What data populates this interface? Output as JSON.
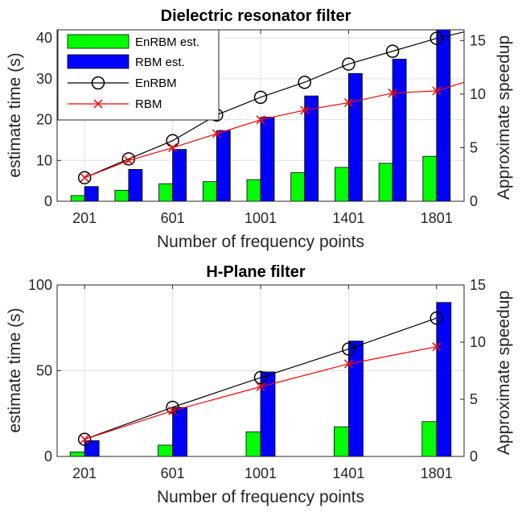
{
  "chart_data": [
    {
      "type": "bar",
      "title": "Dielectric resonator filter",
      "xlabel": "Number of frequency points",
      "ylabel": "estimate time (s)",
      "y2label": "Approximate speedup",
      "x": [
        201,
        401,
        601,
        801,
        1001,
        1201,
        1401,
        1601,
        1801
      ],
      "xticks": [
        "201",
        "601",
        "1001",
        "1401",
        "1801"
      ],
      "xtick_values": [
        201,
        601,
        1001,
        1401,
        1801
      ],
      "yticks": [
        "0",
        "10",
        "20",
        "30",
        "40"
      ],
      "ytick_values": [
        0,
        10,
        20,
        30,
        40
      ],
      "y2ticks": [
        "0",
        "5",
        "10",
        "15"
      ],
      "y2tick_values": [
        0,
        5,
        10,
        15
      ],
      "xlim": [
        76,
        1926
      ],
      "ylim": [
        0,
        42
      ],
      "y2lim": [
        0,
        16
      ],
      "grid": true,
      "legend": "top-left",
      "bar_series": [
        {
          "name": "EnRBM est.",
          "color": "#00ff00",
          "values": [
            1.4,
            2.7,
            4.3,
            4.8,
            5.3,
            7.0,
            8.3,
            9.3,
            11.0
          ]
        },
        {
          "name": "RBM est.",
          "color": "#0000ff",
          "values": [
            3.6,
            7.8,
            12.7,
            17.3,
            20.6,
            25.8,
            31.3,
            34.8,
            42.0
          ]
        }
      ],
      "line_series": [
        {
          "name": "EnRBM",
          "color": "#000000",
          "marker": "circle",
          "values": [
            2.2,
            3.95,
            5.65,
            8.05,
            9.7,
            11.1,
            12.8,
            14.0,
            15.2
          ]
        },
        {
          "name": "RBM",
          "color": "#ff0000",
          "marker": "x",
          "values": [
            2.2,
            3.8,
            5.0,
            6.3,
            7.6,
            8.5,
            9.2,
            10.1,
            10.3
          ]
        }
      ],
      "line_extend_to": 11.1
    },
    {
      "type": "bar",
      "title": "H-Plane filter",
      "xlabel": "Number of frequency points",
      "ylabel": "estimate time (s)",
      "y2label": "Approximate speedup",
      "x": [
        201,
        601,
        1001,
        1401,
        1801
      ],
      "xticks": [
        "201",
        "601",
        "1001",
        "1401",
        "1801"
      ],
      "xtick_values": [
        201,
        601,
        1001,
        1401,
        1801
      ],
      "yticks": [
        "0",
        "50",
        "100"
      ],
      "ytick_values": [
        0,
        50,
        100
      ],
      "y2ticks": [
        "0",
        "5",
        "10",
        "15"
      ],
      "y2tick_values": [
        0,
        5,
        10,
        15
      ],
      "xlim": [
        76,
        1926
      ],
      "ylim": [
        0,
        100
      ],
      "y2lim": [
        0,
        15
      ],
      "grid": true,
      "bar_series": [
        {
          "name": "EnRBM est.",
          "color": "#00ff00",
          "values": [
            2.6,
            6.6,
            14.3,
            17.3,
            20.3
          ]
        },
        {
          "name": "RBM est.",
          "color": "#0000ff",
          "values": [
            9.2,
            28.6,
            49.3,
            67.3,
            89.8
          ]
        }
      ],
      "line_series": [
        {
          "name": "EnRBM",
          "color": "#000000",
          "marker": "circle",
          "values": [
            1.5,
            4.3,
            6.9,
            9.4,
            12.1
          ]
        },
        {
          "name": "RBM",
          "color": "#ff0000",
          "marker": "x",
          "values": [
            1.5,
            4.0,
            6.1,
            8.1,
            9.6
          ]
        }
      ]
    }
  ]
}
